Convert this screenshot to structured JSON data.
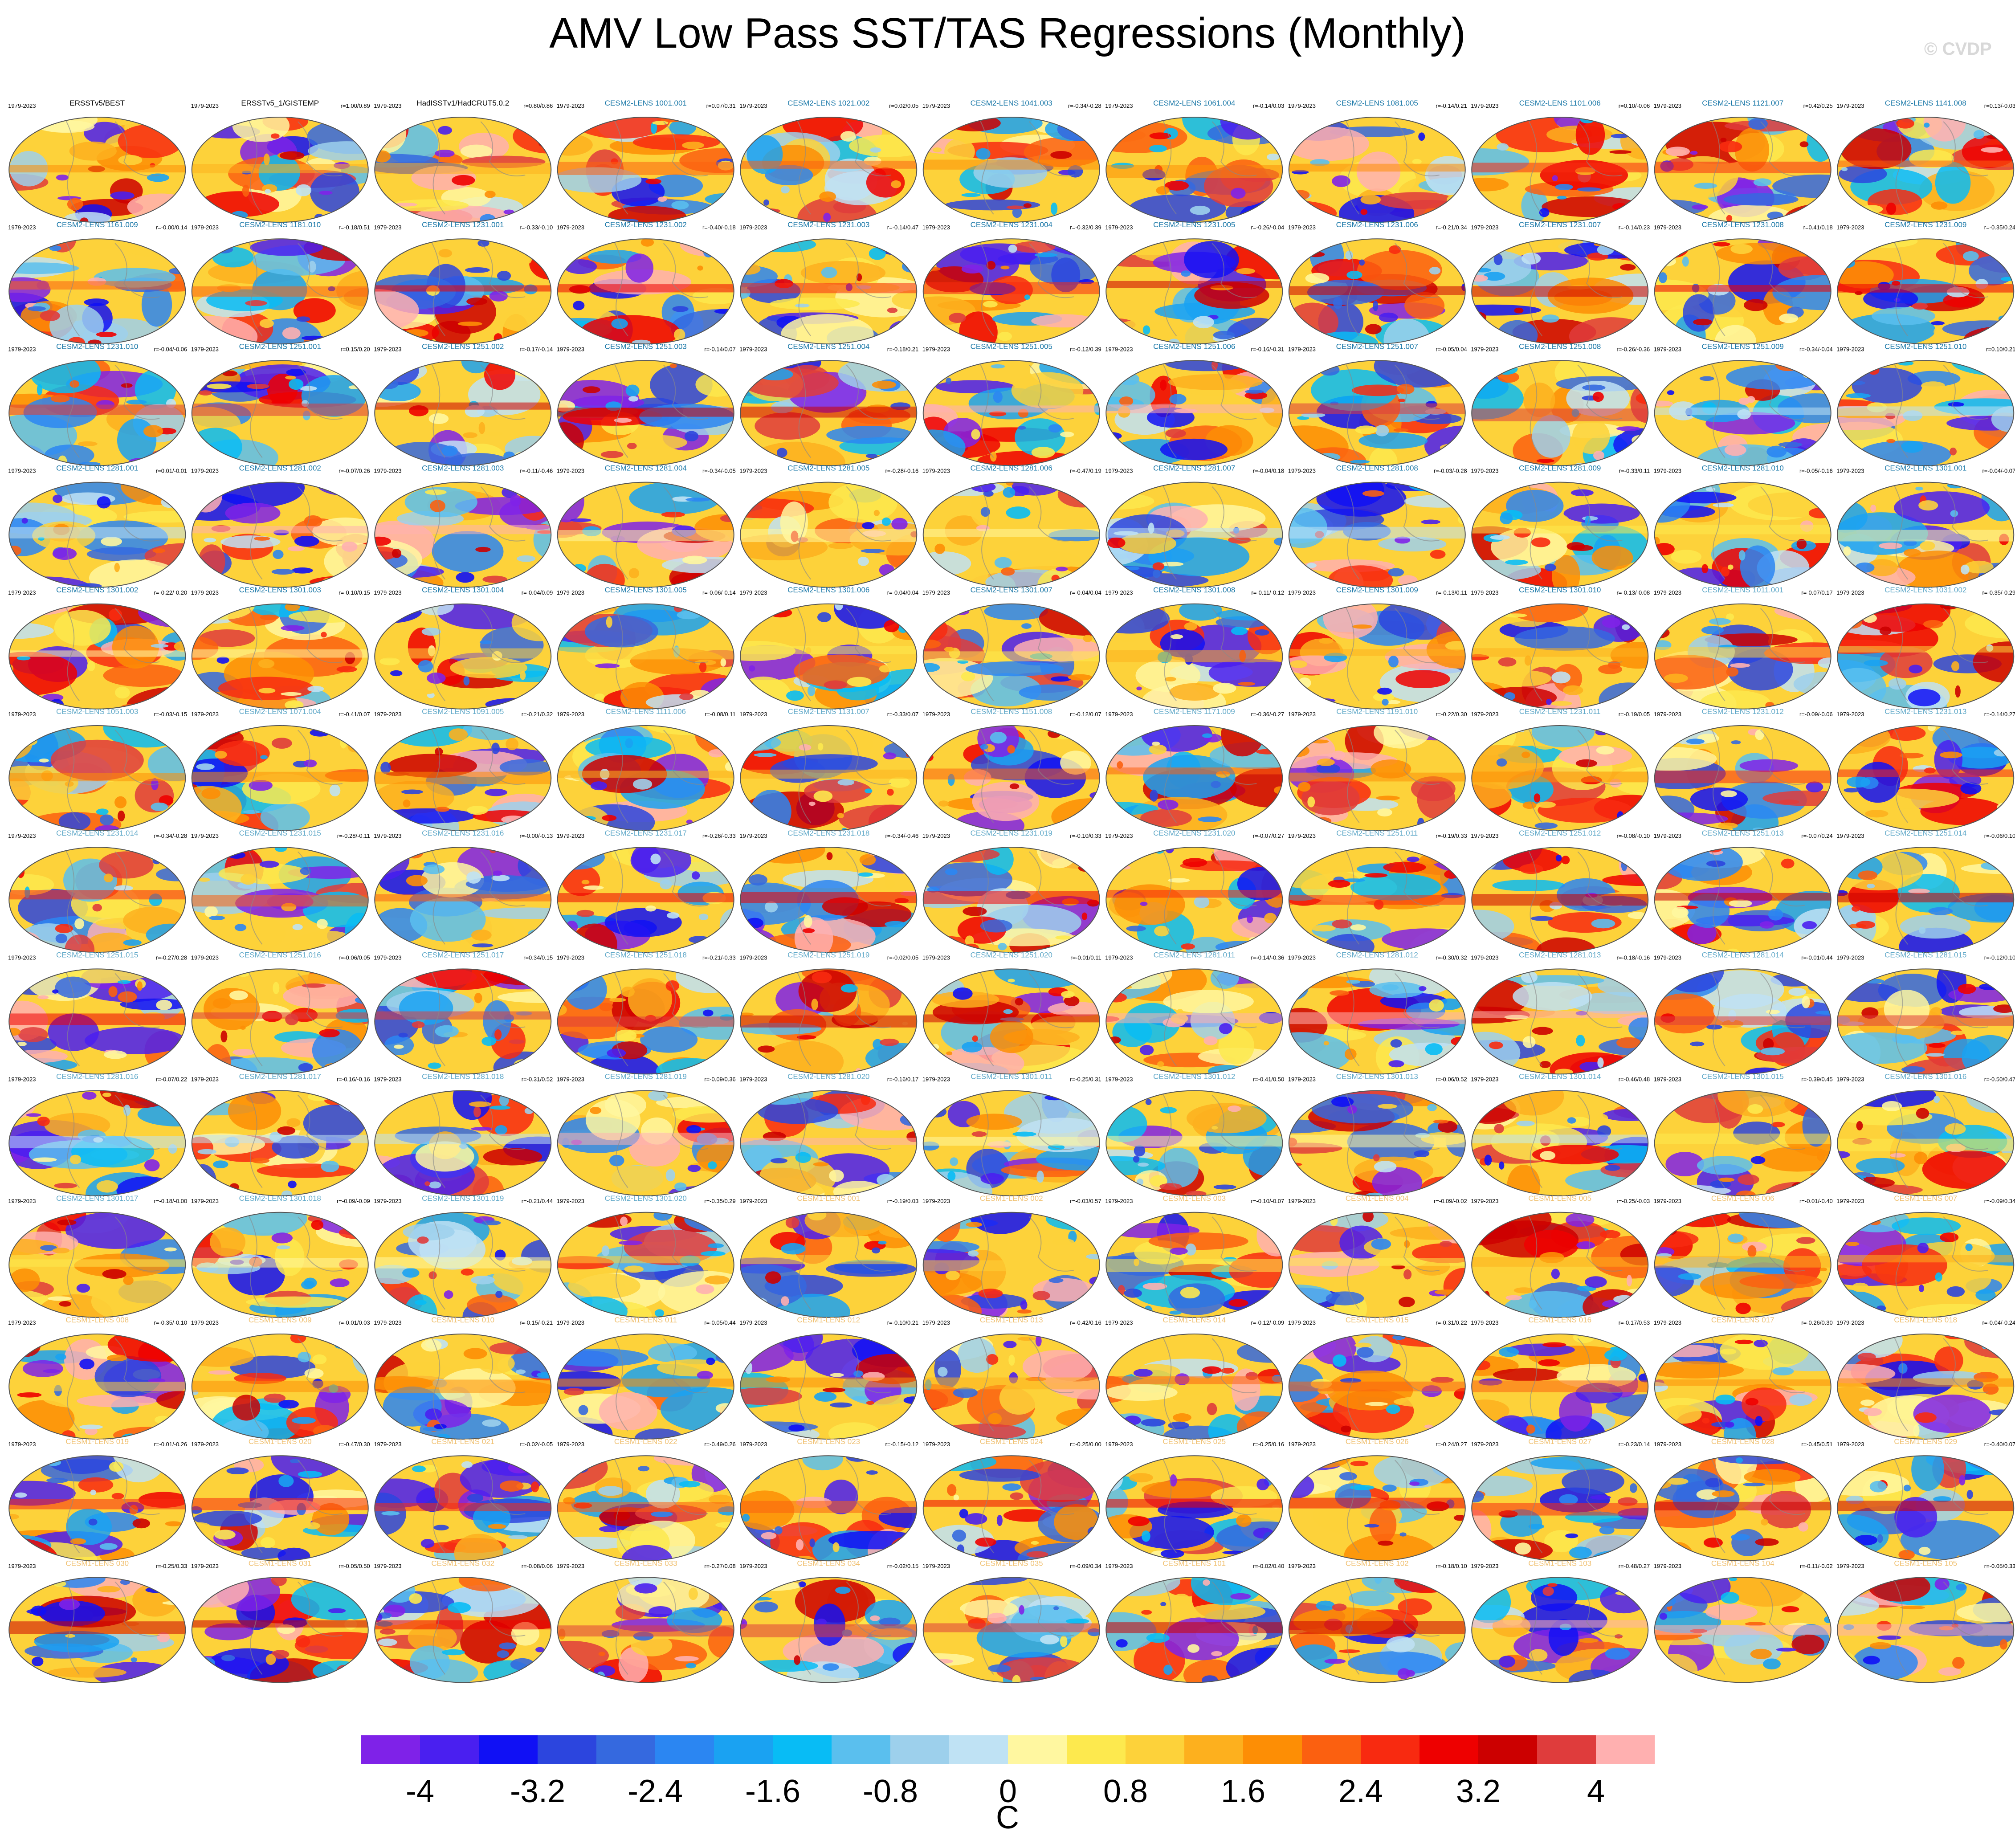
{
  "title": "AMV Low Pass SST/TAS Regressions (Monthly)",
  "watermark": "© CVDP",
  "chart_data": {
    "type": "heatmap",
    "description_kind": "small multiples of global map regression patterns",
    "period_label": "1979-2023",
    "colorbar": {
      "unit": "C",
      "ticks": [
        "-4",
        "-3.2",
        "-2.4",
        "-1.6",
        "-0.8",
        "0",
        "0.8",
        "1.6",
        "2.4",
        "3.2",
        "4"
      ],
      "bounds": [
        -4.4,
        4.4
      ],
      "colors": [
        "#7f22e8",
        "#4a1ff0",
        "#1010f5",
        "#2c45de",
        "#3569df",
        "#2b86f2",
        "#1aa2f2",
        "#08bcf5",
        "#5abfee",
        "#9dd0ec",
        "#bfe2f4",
        "#fff7a0",
        "#fde94e",
        "#fdd23a",
        "#fdb01e",
        "#fd8e05",
        "#fb6010",
        "#f82a10",
        "#ee0000",
        "#cc0000",
        "#df3c3c",
        "#ffb0b0"
      ]
    },
    "panels": [
      {
        "name": "ERSSTv5/BEST",
        "stat": "",
        "c": "#000000"
      },
      {
        "name": "ERSSTv5_1/GISTEMP",
        "stat": "r=1.00/0.89",
        "c": "#000000"
      },
      {
        "name": "HadISSTv1/HadCRUT5.0.2",
        "stat": "r=0.80/0.86",
        "c": "#000000"
      },
      {
        "name": "CESM2-LENS 1001.001",
        "stat": "r=0.07/0.31",
        "c": "#1a78a8"
      },
      {
        "name": "CESM2-LENS 1021.002",
        "stat": "r=0.02/0.05",
        "c": "#1a78a8"
      },
      {
        "name": "CESM2-LENS 1041.003",
        "stat": "r=-0.34/-0.28",
        "c": "#1a78a8"
      },
      {
        "name": "CESM2-LENS 1061.004",
        "stat": "r=-0.14/0.03",
        "c": "#1a78a8"
      },
      {
        "name": "CESM2-LENS 1081.005",
        "stat": "r=-0.14/0.21",
        "c": "#1a78a8"
      },
      {
        "name": "CESM2-LENS 1101.006",
        "stat": "r=0.10/-0.06",
        "c": "#1a78a8"
      },
      {
        "name": "CESM2-LENS 1121.007",
        "stat": "r=0.42/0.25",
        "c": "#1a78a8"
      },
      {
        "name": "CESM2-LENS 1141.008",
        "stat": "r=0.13/-0.03",
        "c": "#1a78a8"
      },
      {
        "name": "CESM2-LENS 1161.009",
        "stat": "r=-0.00/0.14",
        "c": "#1a78a8"
      },
      {
        "name": "CESM2-LENS 1181.010",
        "stat": "r=-0.18/0.51",
        "c": "#1a78a8"
      },
      {
        "name": "CESM2-LENS 1231.001",
        "stat": "r=-0.33/-0.10",
        "c": "#1a78a8"
      },
      {
        "name": "CESM2-LENS 1231.002",
        "stat": "r=-0.40/-0.18",
        "c": "#1a78a8"
      },
      {
        "name": "CESM2-LENS 1231.003",
        "stat": "r=-0.14/0.47",
        "c": "#1a78a8"
      },
      {
        "name": "CESM2-LENS 1231.004",
        "stat": "r=-0.32/0.39",
        "c": "#1a78a8"
      },
      {
        "name": "CESM2-LENS 1231.005",
        "stat": "r=-0.26/-0.04",
        "c": "#1a78a8"
      },
      {
        "name": "CESM2-LENS 1231.006",
        "stat": "r=-0.21/0.34",
        "c": "#1a78a8"
      },
      {
        "name": "CESM2-LENS 1231.007",
        "stat": "r=-0.14/0.23",
        "c": "#1a78a8"
      },
      {
        "name": "CESM2-LENS 1231.008",
        "stat": "r=0.41/0.18",
        "c": "#1a78a8"
      },
      {
        "name": "CESM2-LENS 1231.009",
        "stat": "r=-0.35/0.24",
        "c": "#1a78a8"
      },
      {
        "name": "CESM2-LENS 1231.010",
        "stat": "r=-0.04/-0.06",
        "c": "#1a78a8"
      },
      {
        "name": "CESM2-LENS 1251.001",
        "stat": "r=0.15/0.20",
        "c": "#1a78a8"
      },
      {
        "name": "CESM2-LENS 1251.002",
        "stat": "r=-0.17/-0.14",
        "c": "#1a78a8"
      },
      {
        "name": "CESM2-LENS 1251.003",
        "stat": "r=-0.14/0.07",
        "c": "#1a78a8"
      },
      {
        "name": "CESM2-LENS 1251.004",
        "stat": "r=-0.18/0.21",
        "c": "#1a78a8"
      },
      {
        "name": "CESM2-LENS 1251.005",
        "stat": "r=-0.12/0.39",
        "c": "#1a78a8"
      },
      {
        "name": "CESM2-LENS 1251.006",
        "stat": "r=-0.16/-0.31",
        "c": "#1a78a8"
      },
      {
        "name": "CESM2-LENS 1251.007",
        "stat": "r=-0.05/0.04",
        "c": "#1a78a8"
      },
      {
        "name": "CESM2-LENS 1251.008",
        "stat": "r=-0.26/-0.36",
        "c": "#1a78a8"
      },
      {
        "name": "CESM2-LENS 1251.009",
        "stat": "r=-0.34/-0.04",
        "c": "#1a78a8"
      },
      {
        "name": "CESM2-LENS 1251.010",
        "stat": "r=0.10/0.21",
        "c": "#1a78a8"
      },
      {
        "name": "CESM2-LENS 1281.001",
        "stat": "r=0.01/-0.01",
        "c": "#1a78a8"
      },
      {
        "name": "CESM2-LENS 1281.002",
        "stat": "r=-0.07/0.26",
        "c": "#1a78a8"
      },
      {
        "name": "CESM2-LENS 1281.003",
        "stat": "r=-0.11/-0.46",
        "c": "#1a78a8"
      },
      {
        "name": "CESM2-LENS 1281.004",
        "stat": "r=-0.34/-0.05",
        "c": "#1a78a8"
      },
      {
        "name": "CESM2-LENS 1281.005",
        "stat": "r=-0.28/-0.16",
        "c": "#1a78a8"
      },
      {
        "name": "CESM2-LENS 1281.006",
        "stat": "r=-0.47/0.19",
        "c": "#1a78a8"
      },
      {
        "name": "CESM2-LENS 1281.007",
        "stat": "r=-0.04/0.18",
        "c": "#1a78a8"
      },
      {
        "name": "CESM2-LENS 1281.008",
        "stat": "r=-0.03/-0.28",
        "c": "#1a78a8"
      },
      {
        "name": "CESM2-LENS 1281.009",
        "stat": "r=-0.33/0.11",
        "c": "#1a78a8"
      },
      {
        "name": "CESM2-LENS 1281.010",
        "stat": "r=-0.05/-0.16",
        "c": "#1a78a8"
      },
      {
        "name": "CESM2-LENS 1301.001",
        "stat": "r=-0.04/-0.07",
        "c": "#1a78a8"
      },
      {
        "name": "CESM2-LENS 1301.002",
        "stat": "r=-0.22/-0.20",
        "c": "#1a78a8"
      },
      {
        "name": "CESM2-LENS 1301.003",
        "stat": "r=-0.10/0.15",
        "c": "#1a78a8"
      },
      {
        "name": "CESM2-LENS 1301.004",
        "stat": "r=-0.04/0.09",
        "c": "#1a78a8"
      },
      {
        "name": "CESM2-LENS 1301.005",
        "stat": "r=-0.06/-0.14",
        "c": "#1a78a8"
      },
      {
        "name": "CESM2-LENS 1301.006",
        "stat": "r=-0.04/0.04",
        "c": "#1a78a8"
      },
      {
        "name": "CESM2-LENS 1301.007",
        "stat": "r=-0.04/0.04",
        "c": "#1a78a8"
      },
      {
        "name": "CESM2-LENS 1301.008",
        "stat": "r=-0.11/-0.12",
        "c": "#1a78a8"
      },
      {
        "name": "CESM2-LENS 1301.009",
        "stat": "r=-0.13/0.11",
        "c": "#1a78a8"
      },
      {
        "name": "CESM2-LENS 1301.010",
        "stat": "r=-0.13/-0.08",
        "c": "#1a78a8"
      },
      {
        "name": "CESM2-LENS 1011.001",
        "stat": "r=-0.07/0.17",
        "c": "#5fa8c8"
      },
      {
        "name": "CESM2-LENS 1031.002",
        "stat": "r=-0.35/-0.29",
        "c": "#5fa8c8"
      },
      {
        "name": "CESM2-LENS 1051.003",
        "stat": "r=-0.03/-0.15",
        "c": "#5fa8c8"
      },
      {
        "name": "CESM2-LENS 1071.004",
        "stat": "r=-0.41/0.07",
        "c": "#5fa8c8"
      },
      {
        "name": "CESM2-LENS 1091.005",
        "stat": "r=-0.21/0.32",
        "c": "#5fa8c8"
      },
      {
        "name": "CESM2-LENS 1111.006",
        "stat": "r=-0.08/0.11",
        "c": "#5fa8c8"
      },
      {
        "name": "CESM2-LENS 1131.007",
        "stat": "r=-0.33/0.07",
        "c": "#5fa8c8"
      },
      {
        "name": "CESM2-LENS 1151.008",
        "stat": "r=-0.12/0.07",
        "c": "#5fa8c8"
      },
      {
        "name": "CESM2-LENS 1171.009",
        "stat": "r=-0.36/-0.27",
        "c": "#5fa8c8"
      },
      {
        "name": "CESM2-LENS 1191.010",
        "stat": "r=-0.22/0.30",
        "c": "#5fa8c8"
      },
      {
        "name": "CESM2-LENS 1231.011",
        "stat": "r=-0.19/0.05",
        "c": "#5fa8c8"
      },
      {
        "name": "CESM2-LENS 1231.012",
        "stat": "r=-0.09/-0.06",
        "c": "#5fa8c8"
      },
      {
        "name": "CESM2-LENS 1231.013",
        "stat": "r=-0.14/0.27",
        "c": "#5fa8c8"
      },
      {
        "name": "CESM2-LENS 1231.014",
        "stat": "r=-0.34/-0.28",
        "c": "#5fa8c8"
      },
      {
        "name": "CESM2-LENS 1231.015",
        "stat": "r=-0.28/-0.11",
        "c": "#5fa8c8"
      },
      {
        "name": "CESM2-LENS 1231.016",
        "stat": "r=-0.00/-0.13",
        "c": "#5fa8c8"
      },
      {
        "name": "CESM2-LENS 1231.017",
        "stat": "r=-0.26/-0.33",
        "c": "#5fa8c8"
      },
      {
        "name": "CESM2-LENS 1231.018",
        "stat": "r=-0.34/-0.46",
        "c": "#5fa8c8"
      },
      {
        "name": "CESM2-LENS 1231.019",
        "stat": "r=-0.10/0.33",
        "c": "#5fa8c8"
      },
      {
        "name": "CESM2-LENS 1231.020",
        "stat": "r=-0.07/0.27",
        "c": "#5fa8c8"
      },
      {
        "name": "CESM2-LENS 1251.011",
        "stat": "r=-0.19/0.33",
        "c": "#5fa8c8"
      },
      {
        "name": "CESM2-LENS 1251.012",
        "stat": "r=-0.08/-0.10",
        "c": "#5fa8c8"
      },
      {
        "name": "CESM2-LENS 1251.013",
        "stat": "r=-0.07/0.24",
        "c": "#5fa8c8"
      },
      {
        "name": "CESM2-LENS 1251.014",
        "stat": "r=-0.06/0.10",
        "c": "#5fa8c8"
      },
      {
        "name": "CESM2-LENS 1251.015",
        "stat": "r=-0.27/0.28",
        "c": "#5fa8c8"
      },
      {
        "name": "CESM2-LENS 1251.016",
        "stat": "r=-0.06/0.05",
        "c": "#5fa8c8"
      },
      {
        "name": "CESM2-LENS 1251.017",
        "stat": "r=0.34/0.15",
        "c": "#5fa8c8"
      },
      {
        "name": "CESM2-LENS 1251.018",
        "stat": "r=-0.21/-0.33",
        "c": "#5fa8c8"
      },
      {
        "name": "CESM2-LENS 1251.019",
        "stat": "r=-0.02/0.05",
        "c": "#5fa8c8"
      },
      {
        "name": "CESM2-LENS 1251.020",
        "stat": "r=-0.01/0.11",
        "c": "#5fa8c8"
      },
      {
        "name": "CESM2-LENS 1281.011",
        "stat": "r=-0.14/-0.36",
        "c": "#5fa8c8"
      },
      {
        "name": "CESM2-LENS 1281.012",
        "stat": "r=-0.30/0.32",
        "c": "#5fa8c8"
      },
      {
        "name": "CESM2-LENS 1281.013",
        "stat": "r=-0.18/-0.16",
        "c": "#5fa8c8"
      },
      {
        "name": "CESM2-LENS 1281.014",
        "stat": "r=-0.01/0.44",
        "c": "#5fa8c8"
      },
      {
        "name": "CESM2-LENS 1281.015",
        "stat": "r=-0.12/0.10",
        "c": "#5fa8c8"
      },
      {
        "name": "CESM2-LENS 1281.016",
        "stat": "r=-0.07/0.22",
        "c": "#5fa8c8"
      },
      {
        "name": "CESM2-LENS 1281.017",
        "stat": "r=-0.16/-0.16",
        "c": "#5fa8c8"
      },
      {
        "name": "CESM2-LENS 1281.018",
        "stat": "r=-0.31/0.52",
        "c": "#5fa8c8"
      },
      {
        "name": "CESM2-LENS 1281.019",
        "stat": "r=-0.09/0.36",
        "c": "#5fa8c8"
      },
      {
        "name": "CESM2-LENS 1281.020",
        "stat": "r=-0.16/0.17",
        "c": "#5fa8c8"
      },
      {
        "name": "CESM2-LENS 1301.011",
        "stat": "r=-0.25/0.31",
        "c": "#5fa8c8"
      },
      {
        "name": "CESM2-LENS 1301.012",
        "stat": "r=-0.41/0.50",
        "c": "#5fa8c8"
      },
      {
        "name": "CESM2-LENS 1301.013",
        "stat": "r=-0.06/0.52",
        "c": "#5fa8c8"
      },
      {
        "name": "CESM2-LENS 1301.014",
        "stat": "r=-0.46/0.48",
        "c": "#5fa8c8"
      },
      {
        "name": "CESM2-LENS 1301.015",
        "stat": "r=-0.39/0.45",
        "c": "#5fa8c8"
      },
      {
        "name": "CESM2-LENS 1301.016",
        "stat": "r=-0.50/0.47",
        "c": "#5fa8c8"
      },
      {
        "name": "CESM2-LENS 1301.017",
        "stat": "r=-0.18/-0.00",
        "c": "#5fa8c8"
      },
      {
        "name": "CESM2-LENS 1301.018",
        "stat": "r=-0.09/-0.09",
        "c": "#5fa8c8"
      },
      {
        "name": "CESM2-LENS 1301.019",
        "stat": "r=-0.21/0.44",
        "c": "#5fa8c8"
      },
      {
        "name": "CESM2-LENS 1301.020",
        "stat": "r=-0.35/0.29",
        "c": "#5fa8c8"
      },
      {
        "name": "CESM1-LENS 001",
        "stat": "r=-0.19/0.03",
        "c": "#f0c070"
      },
      {
        "name": "CESM1-LENS 002",
        "stat": "r=-0.03/0.57",
        "c": "#f0c070"
      },
      {
        "name": "CESM1-LENS 003",
        "stat": "r=-0.10/-0.07",
        "c": "#f0c070"
      },
      {
        "name": "CESM1-LENS 004",
        "stat": "r=-0.09/-0.02",
        "c": "#f0c070"
      },
      {
        "name": "CESM1-LENS 005",
        "stat": "r=-0.25/-0.03",
        "c": "#f0c070"
      },
      {
        "name": "CESM1-LENS 006",
        "stat": "r=-0.01/-0.40",
        "c": "#f0c070"
      },
      {
        "name": "CESM1-LENS 007",
        "stat": "r=-0.09/0.34",
        "c": "#f0c070"
      },
      {
        "name": "CESM1-LENS 008",
        "stat": "r=-0.35/-0.10",
        "c": "#f0c070"
      },
      {
        "name": "CESM1-LENS 009",
        "stat": "r=-0.01/0.03",
        "c": "#f0c070"
      },
      {
        "name": "CESM1-LENS 010",
        "stat": "r=-0.15/-0.21",
        "c": "#f0c070"
      },
      {
        "name": "CESM1-LENS 011",
        "stat": "r=-0.05/0.44",
        "c": "#f0c070"
      },
      {
        "name": "CESM1-LENS 012",
        "stat": "r=-0.10/0.21",
        "c": "#f0c070"
      },
      {
        "name": "CESM1-LENS 013",
        "stat": "r=-0.42/0.16",
        "c": "#f0c070"
      },
      {
        "name": "CESM1-LENS 014",
        "stat": "r=-0.12/-0.09",
        "c": "#f0c070"
      },
      {
        "name": "CESM1-LENS 015",
        "stat": "r=-0.31/0.22",
        "c": "#f0c070"
      },
      {
        "name": "CESM1-LENS 016",
        "stat": "r=-0.17/0.53",
        "c": "#f0c070"
      },
      {
        "name": "CESM1-LENS 017",
        "stat": "r=-0.26/0.30",
        "c": "#f0c070"
      },
      {
        "name": "CESM1-LENS 018",
        "stat": "r=-0.04/-0.24",
        "c": "#f0c070"
      },
      {
        "name": "CESM1-LENS 019",
        "stat": "r=-0.01/-0.26",
        "c": "#f0c070"
      },
      {
        "name": "CESM1-LENS 020",
        "stat": "r=-0.47/0.30",
        "c": "#f0c070"
      },
      {
        "name": "CESM1-LENS 021",
        "stat": "r=-0.02/-0.05",
        "c": "#f0c070"
      },
      {
        "name": "CESM1-LENS 022",
        "stat": "r=-0.49/0.26",
        "c": "#f0c070"
      },
      {
        "name": "CESM1-LENS 023",
        "stat": "r=-0.15/-0.12",
        "c": "#f0c070"
      },
      {
        "name": "CESM1-LENS 024",
        "stat": "r=-0.25/0.00",
        "c": "#f0c070"
      },
      {
        "name": "CESM1-LENS 025",
        "stat": "r=-0.25/0.16",
        "c": "#f0c070"
      },
      {
        "name": "CESM1-LENS 026",
        "stat": "r=-0.24/0.27",
        "c": "#f0c070"
      },
      {
        "name": "CESM1-LENS 027",
        "stat": "r=-0.23/0.14",
        "c": "#f0c070"
      },
      {
        "name": "CESM1-LENS 028",
        "stat": "r=-0.45/0.51",
        "c": "#f0c070"
      },
      {
        "name": "CESM1-LENS 029",
        "stat": "r=-0.40/0.07",
        "c": "#f0c070"
      },
      {
        "name": "CESM1-LENS 030",
        "stat": "r=-0.25/0.33",
        "c": "#f0c070"
      },
      {
        "name": "CESM1-LENS 031",
        "stat": "r=-0.05/0.50",
        "c": "#f0c070"
      },
      {
        "name": "CESM1-LENS 032",
        "stat": "r=-0.08/0.06",
        "c": "#f0c070"
      },
      {
        "name": "CESM1-LENS 033",
        "stat": "r=-0.27/0.08",
        "c": "#f0c070"
      },
      {
        "name": "CESM1-LENS 034",
        "stat": "r=-0.02/0.15",
        "c": "#f0c070"
      },
      {
        "name": "CESM1-LENS 035",
        "stat": "r=-0.09/0.34",
        "c": "#f0c070"
      },
      {
        "name": "CESM1-LENS 101",
        "stat": "r=-0.02/0.40",
        "c": "#f0c070"
      },
      {
        "name": "CESM1-LENS 102",
        "stat": "r=-0.18/0.10",
        "c": "#f0c070"
      },
      {
        "name": "CESM1-LENS 103",
        "stat": "r=-0.48/0.27",
        "c": "#f0c070"
      },
      {
        "name": "CESM1-LENS 104",
        "stat": "r=-0.11/-0.02",
        "c": "#f0c070"
      },
      {
        "name": "CESM1-LENS 105",
        "stat": "r=-0.05/0.33",
        "c": "#f0c070"
      }
    ]
  }
}
